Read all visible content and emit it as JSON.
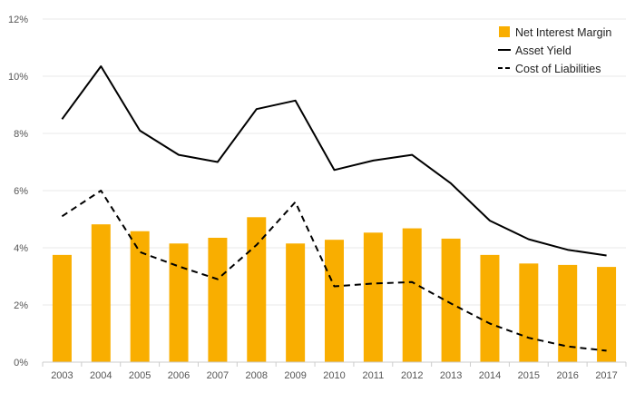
{
  "chart_data": {
    "type": "bar",
    "categories": [
      "2003",
      "2004",
      "2005",
      "2006",
      "2007",
      "2008",
      "2009",
      "2010",
      "2011",
      "2012",
      "2013",
      "2014",
      "2015",
      "2016",
      "2017"
    ],
    "series": [
      {
        "name": "Net Interest Margin",
        "kind": "bar",
        "values": [
          3.75,
          4.82,
          4.58,
          4.15,
          4.35,
          5.07,
          4.15,
          4.28,
          4.53,
          4.68,
          4.32,
          3.75,
          3.45,
          3.4,
          3.33
        ]
      },
      {
        "name": "Asset Yield",
        "kind": "line",
        "dash": "solid",
        "values": [
          8.5,
          10.35,
          8.1,
          7.25,
          7.0,
          8.85,
          9.15,
          6.72,
          7.05,
          7.25,
          6.25,
          4.95,
          4.3,
          3.93,
          3.73
        ]
      },
      {
        "name": "Cost of Liabilities",
        "kind": "line",
        "dash": "dashed",
        "values": [
          5.1,
          6.0,
          3.85,
          3.35,
          2.9,
          4.1,
          5.6,
          2.65,
          2.75,
          2.8,
          2.05,
          1.35,
          0.85,
          0.55,
          0.4
        ]
      }
    ],
    "y_ticks": [
      "0%",
      "2%",
      "4%",
      "6%",
      "8%",
      "10%",
      "12%"
    ],
    "ylim": [
      0,
      12
    ],
    "grid": true,
    "legend_position": "top-right",
    "colors": {
      "bar": "#f9ae00",
      "line": "#000000",
      "grid": "#e8e8e8",
      "axis": "#cccccc"
    },
    "title": "",
    "xlabel": "",
    "ylabel": ""
  }
}
